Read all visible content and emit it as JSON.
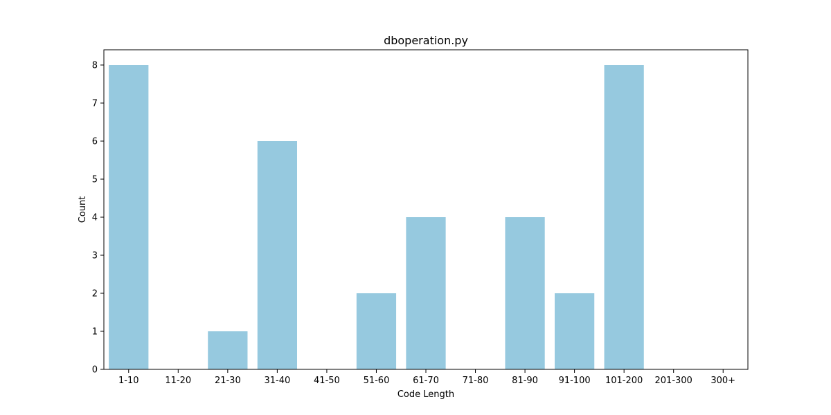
{
  "chart_data": {
    "type": "bar",
    "title": "dboperation.py",
    "xlabel": "Code Length",
    "ylabel": "Count",
    "categories": [
      "1-10",
      "11-20",
      "21-30",
      "31-40",
      "41-50",
      "51-60",
      "61-70",
      "71-80",
      "81-90",
      "91-100",
      "101-200",
      "201-300",
      "300+"
    ],
    "values": [
      8,
      0,
      1,
      6,
      0,
      2,
      4,
      0,
      4,
      2,
      8,
      0,
      0
    ],
    "ylim": [
      0,
      8.4
    ],
    "yticks": [
      0,
      1,
      2,
      3,
      4,
      5,
      6,
      7,
      8
    ],
    "bar_color": "#96c9df",
    "grid": false,
    "legend": "none"
  }
}
